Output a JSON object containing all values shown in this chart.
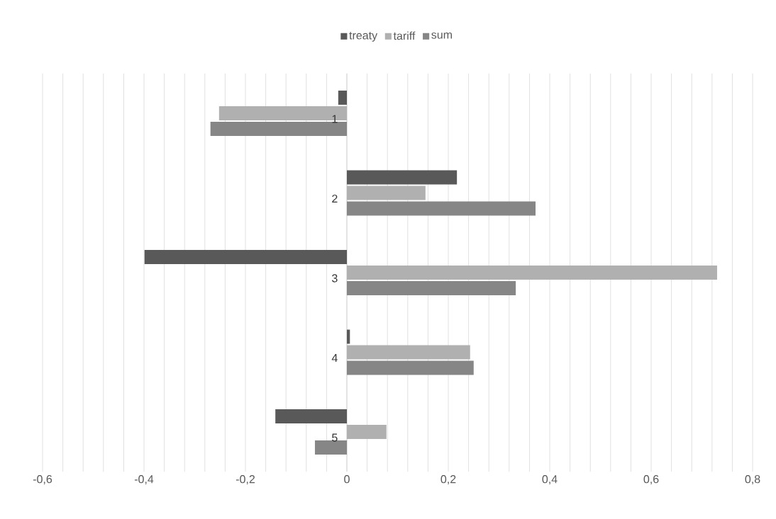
{
  "chart_data": {
    "type": "bar",
    "orientation": "horizontal",
    "categories": [
      "1",
      "2",
      "3",
      "4",
      "5"
    ],
    "series": [
      {
        "name": "treaty",
        "color": "#595959",
        "values": [
          -0.017,
          0.217,
          -0.399,
          0.006,
          -0.141
        ]
      },
      {
        "name": "tariff",
        "color": "#b0b0b0",
        "values": [
          -0.252,
          0.155,
          0.73,
          0.243,
          0.078
        ]
      },
      {
        "name": "sum",
        "color": "#868686",
        "values": [
          -0.269,
          0.372,
          0.333,
          0.25,
          -0.063
        ]
      }
    ],
    "xlim": [
      -0.6,
      0.8
    ],
    "xticks": [
      {
        "value": -0.6,
        "label": "-0,6"
      },
      {
        "value": -0.56,
        "label": null
      },
      {
        "value": -0.52,
        "label": null
      },
      {
        "value": -0.48,
        "label": null
      },
      {
        "value": -0.44,
        "label": null
      },
      {
        "value": -0.4,
        "label": "-0,4"
      },
      {
        "value": -0.36,
        "label": null
      },
      {
        "value": -0.32,
        "label": null
      },
      {
        "value": -0.28,
        "label": null
      },
      {
        "value": -0.24,
        "label": null
      },
      {
        "value": -0.2,
        "label": "-0,2"
      },
      {
        "value": -0.16,
        "label": null
      },
      {
        "value": -0.12,
        "label": null
      },
      {
        "value": -0.08,
        "label": null
      },
      {
        "value": -0.04,
        "label": null
      },
      0,
      {
        "value": 0.04,
        "label": null
      },
      {
        "value": 0.08,
        "label": null
      },
      {
        "value": 0.12,
        "label": null
      },
      {
        "value": 0.16,
        "label": null
      },
      {
        "value": 0.2,
        "label": "0,2"
      },
      {
        "value": 0.24,
        "label": null
      },
      {
        "value": 0.28,
        "label": null
      },
      {
        "value": 0.32,
        "label": null
      },
      {
        "value": 0.36,
        "label": null
      },
      {
        "value": 0.4,
        "label": "0,4"
      },
      {
        "value": 0.44,
        "label": null
      },
      {
        "value": 0.48,
        "label": null
      },
      {
        "value": 0.52,
        "label": null
      },
      {
        "value": 0.56,
        "label": null
      },
      {
        "value": 0.6,
        "label": "0,6"
      },
      {
        "value": 0.64,
        "label": null
      },
      {
        "value": 0.68,
        "label": null
      },
      {
        "value": 0.72,
        "label": null
      },
      {
        "value": 0.76,
        "label": null
      },
      {
        "value": 0.8,
        "label": "0,8"
      }
    ],
    "grid": "x",
    "legend": "top"
  }
}
